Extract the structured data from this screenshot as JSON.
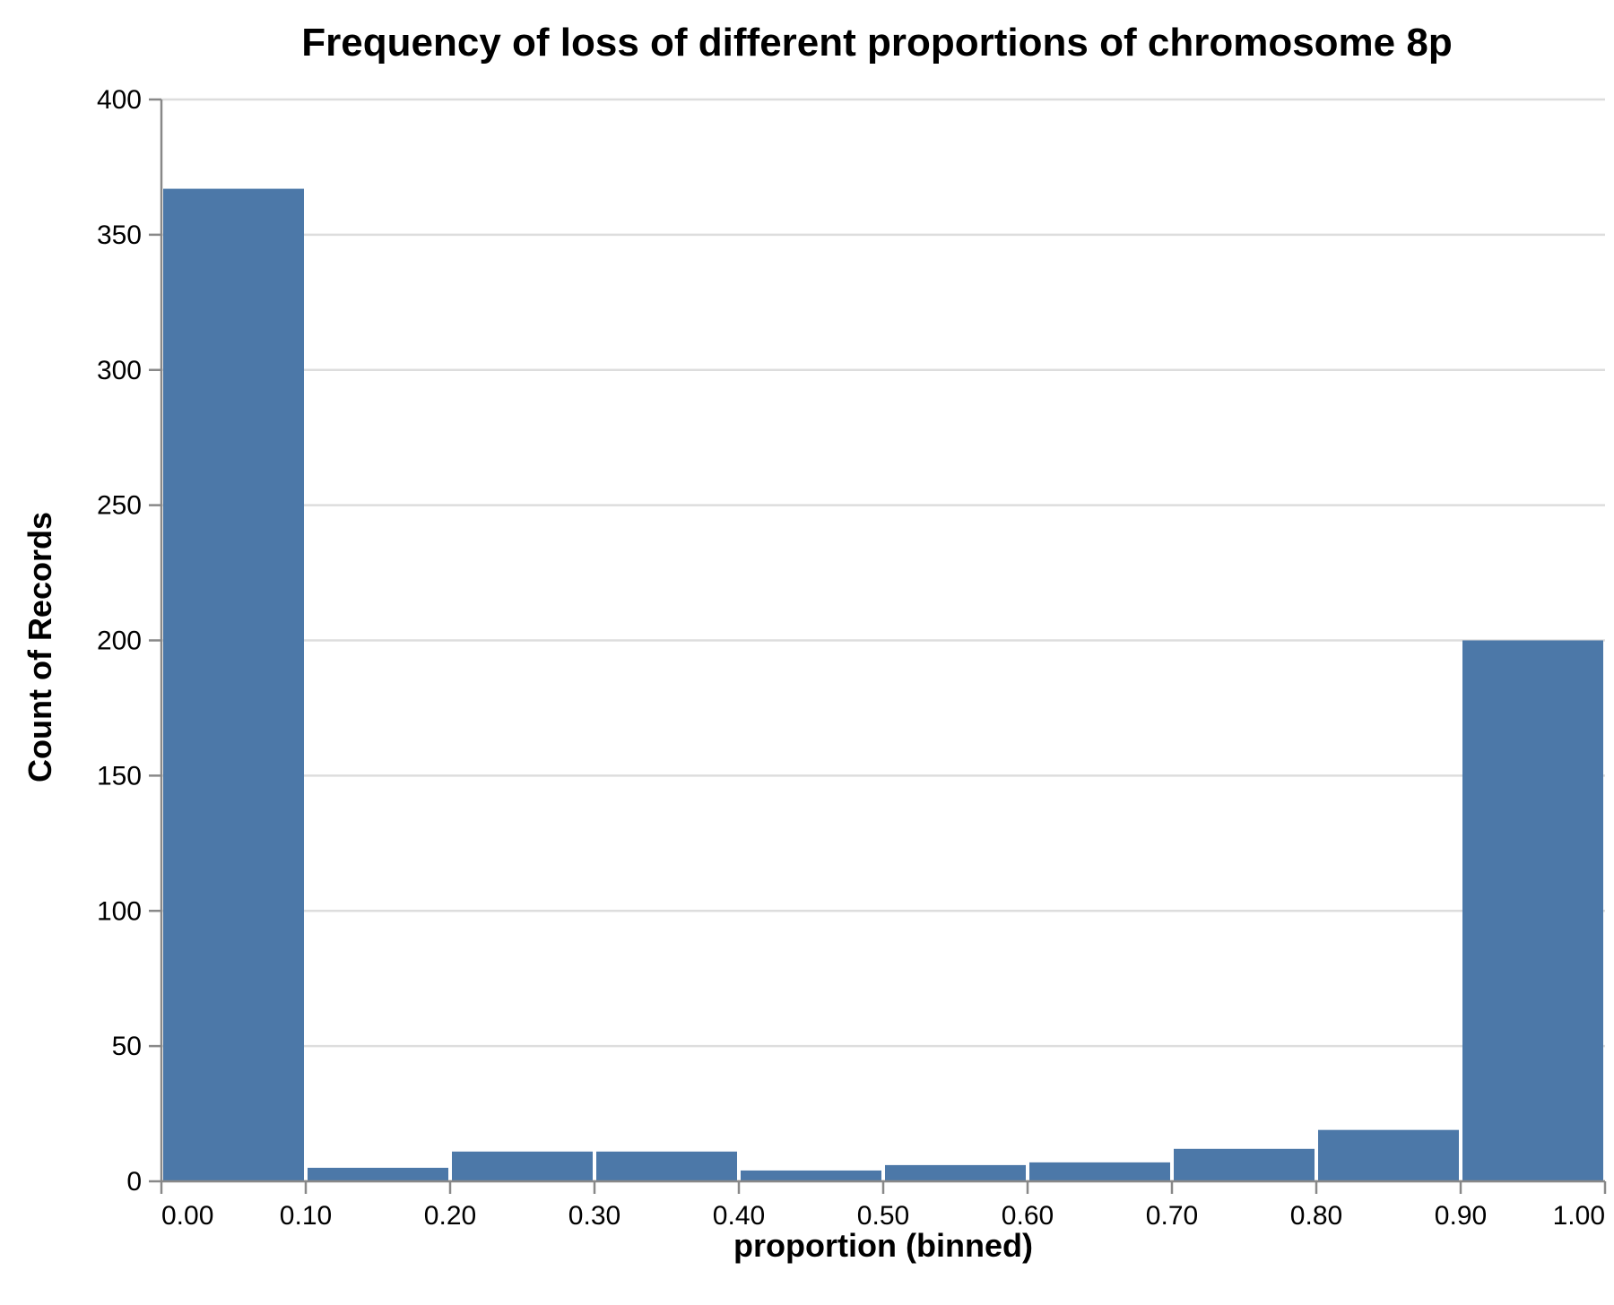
{
  "chart_data": {
    "type": "bar",
    "title": "Frequency of loss of different proportions of chromosome 8p",
    "xlabel": "proportion (binned)",
    "ylabel": "Count of Records",
    "bins": [
      {
        "start": 0.0,
        "end": 0.1,
        "count": 367
      },
      {
        "start": 0.1,
        "end": 0.2,
        "count": 5
      },
      {
        "start": 0.2,
        "end": 0.3,
        "count": 11
      },
      {
        "start": 0.3,
        "end": 0.4,
        "count": 11
      },
      {
        "start": 0.4,
        "end": 0.5,
        "count": 4
      },
      {
        "start": 0.5,
        "end": 0.6,
        "count": 6
      },
      {
        "start": 0.6,
        "end": 0.7,
        "count": 7
      },
      {
        "start": 0.7,
        "end": 0.8,
        "count": 12
      },
      {
        "start": 0.8,
        "end": 0.9,
        "count": 19
      },
      {
        "start": 0.9,
        "end": 1.0,
        "count": 200
      }
    ],
    "x_ticks": [
      "0.00",
      "0.10",
      "0.20",
      "0.30",
      "0.40",
      "0.50",
      "0.60",
      "0.70",
      "0.80",
      "0.90",
      "1.00"
    ],
    "y_ticks": [
      "0",
      "50",
      "100",
      "150",
      "200",
      "250",
      "300",
      "350",
      "400"
    ],
    "xlim": [
      0,
      1
    ],
    "ylim": [
      0,
      400
    ],
    "grid": "horizontal",
    "legend": "none",
    "colors": {
      "bar": "#4c78a8",
      "grid": "#dddddd",
      "axis": "#888888",
      "text": "#000000"
    }
  }
}
